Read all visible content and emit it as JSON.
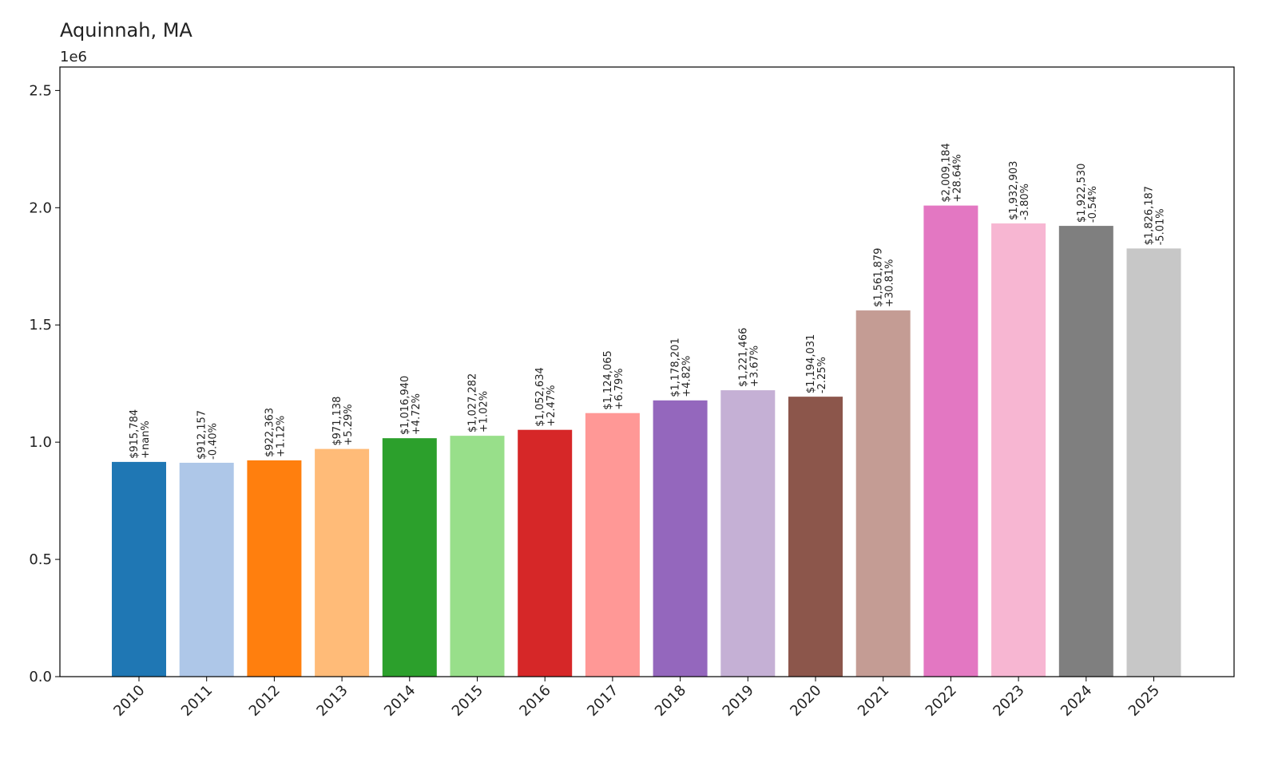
{
  "chart_data": {
    "type": "bar",
    "title": "Aquinnah, MA",
    "y_offset_label": "1e6",
    "xlabel": "",
    "ylabel": "",
    "ylim": [
      0,
      2600000
    ],
    "y_ticks": [
      0,
      500000,
      1000000,
      1500000,
      2000000,
      2500000
    ],
    "y_tick_labels": [
      "0.0",
      "0.5",
      "1.0",
      "1.5",
      "2.0",
      "2.5"
    ],
    "grid": false,
    "categories": [
      "2010",
      "2011",
      "2012",
      "2013",
      "2014",
      "2015",
      "2016",
      "2017",
      "2018",
      "2019",
      "2020",
      "2021",
      "2022",
      "2023",
      "2024",
      "2025"
    ],
    "values": [
      915784,
      912157,
      922363,
      971138,
      1016940,
      1027282,
      1052634,
      1124065,
      1178201,
      1221466,
      1194031,
      1561879,
      2009184,
      1932903,
      1922530,
      1826187
    ],
    "value_labels": [
      "$915,784",
      "$912,157",
      "$922,363",
      "$971,138",
      "$1,016,940",
      "$1,027,282",
      "$1,052,634",
      "$1,124,065",
      "$1,178,201",
      "$1,221,466",
      "$1,194,031",
      "$1,561,879",
      "$2,009,184",
      "$1,932,903",
      "$1,922,530",
      "$1,826,187"
    ],
    "change_labels": [
      "+nan%",
      "-0.40%",
      "+1.12%",
      "+5.29%",
      "+4.72%",
      "+1.02%",
      "+2.47%",
      "+6.79%",
      "+4.82%",
      "+3.67%",
      "-2.25%",
      "+30.81%",
      "+28.64%",
      "-3.80%",
      "-0.54%",
      "-5.01%"
    ],
    "colors": [
      "#1f77b4",
      "#aec7e8",
      "#ff7f0e",
      "#ffbb78",
      "#2ca02c",
      "#98df8a",
      "#d62728",
      "#ff9896",
      "#9467bd",
      "#c5b0d5",
      "#8c564b",
      "#c49c94",
      "#e377c2",
      "#f7b6d2",
      "#7f7f7f",
      "#c7c7c7"
    ]
  }
}
